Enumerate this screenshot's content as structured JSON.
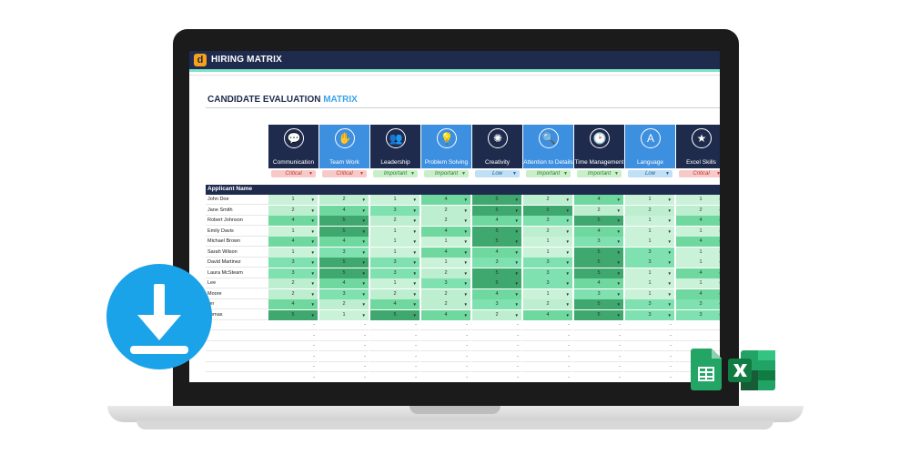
{
  "app": {
    "logo_letter": "d",
    "title": "HIRING MATRIX"
  },
  "page": {
    "title_main": "CANDIDATE EVALUATION ",
    "title_accent": "MATRIX"
  },
  "applicant_header": "Applicant Name",
  "skills": [
    {
      "label": "Communication",
      "icon": "speech-bubbles-icon",
      "glyph": "💬",
      "priority": "Critical"
    },
    {
      "label": "Team Work",
      "icon": "team-hands-icon",
      "glyph": "✋",
      "priority": "Critical"
    },
    {
      "label": "Leadership",
      "icon": "people-hierarchy-icon",
      "glyph": "👥",
      "priority": "Important"
    },
    {
      "label": "Problem Solving",
      "icon": "lightbulb-icon",
      "glyph": "💡",
      "priority": "Important"
    },
    {
      "label": "Creativity",
      "icon": "creative-mind-icon",
      "glyph": "✺",
      "priority": "Low"
    },
    {
      "label": "Attention to Details",
      "icon": "magnifier-icon",
      "glyph": "🔍",
      "priority": "Important"
    },
    {
      "label": "Time Management",
      "icon": "clock-icon",
      "glyph": "🕑",
      "priority": "Important"
    },
    {
      "label": "Language",
      "icon": "translate-bubbles-icon",
      "glyph": "A",
      "priority": "Low"
    },
    {
      "label": "Excel Skills",
      "icon": "podium-icon",
      "glyph": "★",
      "priority": "Critical"
    }
  ],
  "priority_colors": {
    "Critical": {
      "bg": "#f8c9c9",
      "fg": "#c0392b"
    },
    "Important": {
      "bg": "#c9efc9",
      "fg": "#2e7d32"
    },
    "Low": {
      "bg": "#bfe0f5",
      "fg": "#1f5f8b"
    }
  },
  "score_colors": {
    "1": "#c9f2d8",
    "2": "#bdeed0",
    "3": "#7fe0b0",
    "4": "#6fd89f",
    "5": "#3fa86f"
  },
  "empty_cell": "-",
  "candidates": [
    {
      "name": "John Doe",
      "scores": [
        1,
        2,
        1,
        4,
        5,
        2,
        4,
        1,
        1
      ]
    },
    {
      "name": "Jane Smith",
      "scores": [
        2,
        4,
        3,
        2,
        5,
        5,
        2,
        2,
        2
      ]
    },
    {
      "name": "Robert Johnson",
      "scores": [
        4,
        5,
        2,
        2,
        4,
        3,
        5,
        1,
        4
      ]
    },
    {
      "name": "Emily Davis",
      "scores": [
        1,
        5,
        1,
        4,
        5,
        2,
        4,
        1,
        1
      ]
    },
    {
      "name": "Michael Brown",
      "scores": [
        4,
        4,
        1,
        1,
        5,
        1,
        3,
        1,
        4
      ]
    },
    {
      "name": "Sarah Wilson",
      "scores": [
        1,
        3,
        1,
        4,
        4,
        1,
        5,
        3,
        1
      ]
    },
    {
      "name": "David Martinez",
      "scores": [
        3,
        5,
        3,
        1,
        3,
        3,
        5,
        3,
        1
      ]
    },
    {
      "name": "Laura McSteam",
      "scores": [
        3,
        5,
        3,
        2,
        5,
        3,
        5,
        1,
        4
      ]
    },
    {
      "name": "Lee",
      "scores": [
        2,
        4,
        1,
        3,
        5,
        3,
        4,
        1,
        1
      ]
    },
    {
      "name": "Moore",
      "scores": [
        2,
        3,
        2,
        2,
        4,
        1,
        3,
        1,
        4
      ]
    },
    {
      "name": "ller",
      "scores": [
        4,
        2,
        4,
        2,
        3,
        2,
        5,
        3,
        3
      ]
    },
    {
      "name": "homas",
      "scores": [
        5,
        1,
        5,
        4,
        2,
        4,
        5,
        3,
        3
      ]
    }
  ],
  "empty_rows": 6
}
